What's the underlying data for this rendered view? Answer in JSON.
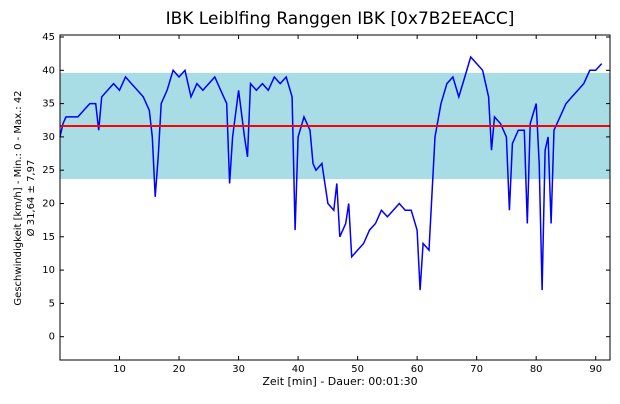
{
  "chart_data": {
    "type": "line",
    "title": "IBK Leiblfing Ranggen IBK [0x7B2EEACC]",
    "y_label": "Geschwindigkeit [km/h] - Min.: 0 - Max.: 42",
    "y_label2": "Ø 31,64 ± 7,97",
    "x_label": "Zeit [min] - Dauer: 00:01:30",
    "x": [
      0,
      0.5,
      1,
      3,
      4,
      5,
      6,
      6.5,
      7,
      8,
      9,
      10,
      11,
      12,
      13,
      14,
      15,
      15.5,
      16,
      16.5,
      17,
      18,
      19,
      20,
      21,
      22,
      23,
      24,
      25,
      26,
      27,
      28,
      28.5,
      29,
      30,
      31,
      31.5,
      32,
      33,
      34,
      35,
      36,
      37,
      38,
      39,
      39.5,
      40,
      41,
      42,
      42.5,
      43,
      44,
      45,
      46,
      46.5,
      47,
      48,
      48.5,
      49,
      50,
      51,
      52,
      53,
      54,
      55,
      56,
      57,
      58,
      59,
      60,
      60.5,
      61,
      62,
      63,
      64,
      65,
      66,
      67,
      68,
      69,
      70,
      71,
      72,
      72.5,
      73,
      74,
      75,
      75.5,
      76,
      77,
      78,
      78.5,
      79,
      80,
      80.5,
      81,
      81.5,
      82,
      82.5,
      83,
      84,
      85,
      86,
      87,
      88,
      89,
      90,
      91
    ],
    "series": [
      {
        "name": "Geschwindigkeit",
        "color": "#0000ff",
        "values": [
          30,
          32,
          33,
          33,
          34,
          35,
          35,
          31,
          36,
          37,
          38,
          37,
          39,
          38,
          37,
          36,
          34,
          30,
          21,
          27,
          35,
          37,
          40,
          39,
          40,
          36,
          38,
          37,
          38,
          39,
          37,
          35,
          23,
          30,
          37,
          30,
          27,
          38,
          37,
          38,
          37,
          39,
          38,
          39,
          36,
          16,
          30,
          33,
          31,
          26,
          25,
          26,
          20,
          19,
          23,
          15,
          17,
          20,
          12,
          13,
          14,
          16,
          17,
          19,
          18,
          19,
          20,
          19,
          19,
          16,
          7,
          14,
          13,
          30,
          35,
          38,
          39,
          36,
          39,
          42,
          41,
          40,
          36,
          28,
          33,
          32,
          30,
          19,
          29,
          31,
          31,
          17,
          32,
          35,
          26,
          7,
          28,
          30,
          17,
          31,
          33,
          35,
          36,
          37,
          38,
          40,
          40,
          41
        ]
      }
    ],
    "mean": 31.64,
    "mean_color": "#ff0000",
    "band": [
      23.67,
      39.61
    ],
    "band_color": "#a8dde6",
    "xlim": [
      0,
      92.4
    ],
    "ylim": [
      -3.5,
      45.3
    ],
    "xticks": [
      10,
      20,
      30,
      40,
      50,
      60,
      70,
      80,
      90
    ],
    "yticks": [
      0,
      5,
      10,
      15,
      20,
      25,
      30,
      35,
      40,
      45
    ]
  }
}
